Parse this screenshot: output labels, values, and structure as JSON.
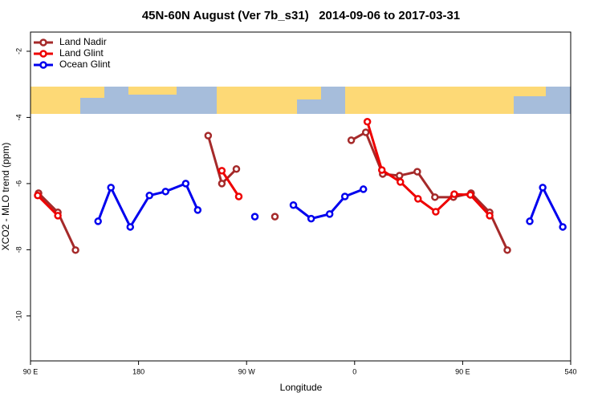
{
  "chart_data": {
    "type": "line",
    "title": "45N-60N August (Ver 7b_s31)   2014-09-06 to 2017-03-31",
    "x_label": "Longitude",
    "y_label": "XCO2 - MLO trend (ppm)",
    "xlim": [
      90,
      540
    ],
    "ylim": [
      -11.36,
      -1.42
    ],
    "xticks": [
      {
        "value": 90,
        "label": "90 E"
      },
      180,
      {
        "value": 270,
        "label": "90 W"
      },
      {
        "value": 360,
        "label": "0"
      },
      {
        "value": 450,
        "label": "90 E"
      },
      540
    ],
    "yticks": [
      -2,
      -4,
      -6,
      -8,
      -10
    ],
    "legend": "top-left",
    "grid": false,
    "series": [
      {
        "name": "Land Nadir",
        "color": "#a52a2a",
        "x": [
          96.7,
          112.8,
          127.5,
          null,
          238.0,
          249.4,
          261.5,
          null,
          293.6,
          null,
          357.2,
          369.3,
          383.4,
          397.4,
          412.2,
          426.9,
          442.3,
          457.0,
          472.5,
          487.2
        ],
        "values": [
          -6.29,
          -6.87,
          -8.01,
          null,
          -4.55,
          -6.0,
          -5.56,
          null,
          -7.0,
          null,
          -4.69,
          -4.45,
          -5.71,
          -5.76,
          -5.64,
          -6.41,
          -6.41,
          -6.29,
          -6.87,
          -8.01
        ]
      },
      {
        "name": "Land Glint",
        "color": "#ee0000",
        "x": [
          96.0,
          112.8,
          null,
          249.4,
          263.5,
          null,
          370.6,
          382.7,
          398.1,
          412.8,
          427.6,
          443.0,
          456.4,
          472.5
        ],
        "values": [
          -6.36,
          -6.97,
          null,
          -5.61,
          -6.39,
          null,
          -4.13,
          -5.59,
          -5.95,
          -6.46,
          -6.85,
          -6.32,
          -6.34,
          -6.97
        ]
      },
      {
        "name": "Ocean Glint",
        "color": "#0000ee",
        "x": [
          146.3,
          157.0,
          173.1,
          189.1,
          202.5,
          219.3,
          229.3,
          null,
          276.9,
          null,
          309.0,
          323.8,
          339.2,
          351.9,
          367.3,
          null,
          505.9,
          516.7,
          533.4
        ],
        "values": [
          -7.14,
          -6.12,
          -7.31,
          -6.36,
          -6.24,
          -6.0,
          -6.8,
          null,
          -7.0,
          null,
          -6.65,
          -7.06,
          -6.92,
          -6.39,
          -6.17,
          null,
          -7.14,
          -6.12,
          -7.31
        ]
      }
    ]
  }
}
